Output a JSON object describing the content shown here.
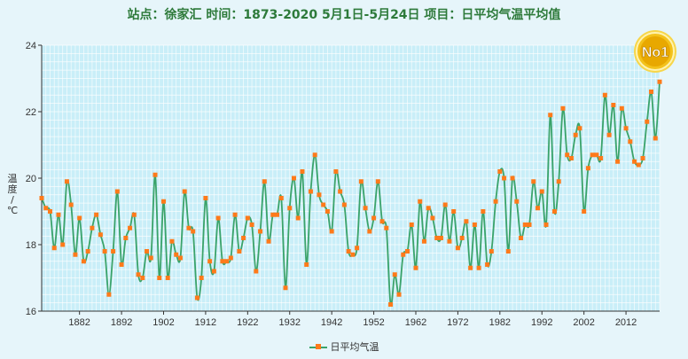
{
  "title": "站点：徐家汇  时间：1873-2020    5月1日-5月24日  项目：日平均气温平均值",
  "badge_text": "No1",
  "colors": {
    "line": "#3aa36a",
    "marker": "#ff7a1a",
    "grid": "#ffffff",
    "plot_bg": "#c9eef8",
    "badge": "#f3c21b"
  },
  "chart_data": {
    "type": "line",
    "title": "站点：徐家汇  时间：1873-2020    5月1日-5月24日  项目：日平均气温平均值",
    "ylabel": "温度/℃",
    "xlabel": "",
    "xlim": [
      1873,
      2020
    ],
    "ylim": [
      16,
      24
    ],
    "yticks": [
      16,
      18,
      20,
      22,
      24
    ],
    "xticks": [
      1882,
      1892,
      1902,
      1912,
      1922,
      1932,
      1942,
      1952,
      1962,
      1972,
      1982,
      1992,
      2002,
      2012
    ],
    "grid": true,
    "legend": "bottom-center",
    "series": [
      {
        "name": "日平均气温",
        "x": [
          1873,
          1874,
          1875,
          1876,
          1877,
          1878,
          1879,
          1880,
          1881,
          1882,
          1883,
          1884,
          1885,
          1886,
          1887,
          1888,
          1889,
          1890,
          1891,
          1892,
          1893,
          1894,
          1895,
          1896,
          1897,
          1898,
          1899,
          1900,
          1901,
          1902,
          1903,
          1904,
          1905,
          1906,
          1907,
          1908,
          1909,
          1910,
          1911,
          1912,
          1913,
          1914,
          1915,
          1916,
          1917,
          1918,
          1919,
          1920,
          1921,
          1922,
          1923,
          1924,
          1925,
          1926,
          1927,
          1928,
          1929,
          1930,
          1931,
          1932,
          1933,
          1934,
          1935,
          1936,
          1937,
          1938,
          1939,
          1940,
          1941,
          1942,
          1943,
          1944,
          1945,
          1946,
          1947,
          1948,
          1949,
          1950,
          1951,
          1952,
          1953,
          1954,
          1955,
          1956,
          1957,
          1958,
          1959,
          1960,
          1961,
          1962,
          1963,
          1964,
          1965,
          1966,
          1967,
          1968,
          1969,
          1970,
          1971,
          1972,
          1973,
          1974,
          1975,
          1976,
          1977,
          1978,
          1979,
          1980,
          1981,
          1982,
          1983,
          1984,
          1985,
          1986,
          1987,
          1988,
          1989,
          1990,
          1991,
          1992,
          1993,
          1994,
          1995,
          1996,
          1997,
          1998,
          1999,
          2000,
          2001,
          2002,
          2003,
          2004,
          2005,
          2006,
          2007,
          2008,
          2009,
          2010,
          2011,
          2012,
          2013,
          2014,
          2015,
          2016,
          2017,
          2018,
          2019,
          2020
        ],
        "values": [
          19.4,
          19.1,
          19.0,
          17.9,
          18.9,
          18.0,
          19.9,
          19.2,
          17.7,
          18.8,
          17.5,
          17.8,
          18.5,
          18.9,
          18.3,
          17.8,
          16.5,
          17.8,
          19.6,
          17.4,
          18.2,
          18.5,
          18.9,
          17.1,
          17.0,
          17.8,
          17.6,
          20.1,
          17.0,
          19.3,
          17.0,
          18.1,
          17.7,
          17.6,
          19.6,
          18.5,
          18.4,
          16.4,
          17.0,
          19.4,
          17.5,
          17.2,
          18.8,
          17.5,
          17.5,
          17.6,
          18.9,
          17.8,
          18.2,
          18.8,
          18.6,
          17.2,
          18.4,
          19.9,
          18.1,
          18.9,
          18.9,
          19.4,
          16.7,
          19.1,
          20.0,
          18.8,
          20.2,
          17.4,
          19.6,
          20.7,
          19.5,
          19.2,
          19.0,
          18.4,
          20.2,
          19.6,
          19.2,
          17.8,
          17.7,
          17.9,
          19.9,
          19.1,
          18.4,
          18.8,
          19.9,
          18.7,
          18.5,
          16.2,
          17.1,
          16.5,
          17.7,
          17.8,
          18.6,
          17.3,
          19.3,
          18.1,
          19.1,
          18.8,
          18.2,
          18.2,
          19.2,
          18.1,
          19.0,
          17.9,
          18.2,
          18.7,
          17.3,
          18.6,
          17.3,
          19.0,
          17.4,
          17.8,
          19.3,
          20.2,
          20.0,
          17.8,
          20.0,
          19.3,
          18.2,
          18.6,
          18.6,
          19.9,
          19.1,
          19.6,
          18.6,
          21.9,
          19.0,
          19.9,
          22.1,
          20.7,
          20.6,
          21.3,
          21.5,
          19.0,
          20.3,
          20.7,
          20.7,
          20.6,
          22.5,
          21.3,
          22.2,
          20.5,
          22.1,
          21.5,
          21.1,
          20.5,
          20.4,
          20.6,
          21.7,
          22.6,
          21.2,
          22.9
        ]
      }
    ]
  }
}
